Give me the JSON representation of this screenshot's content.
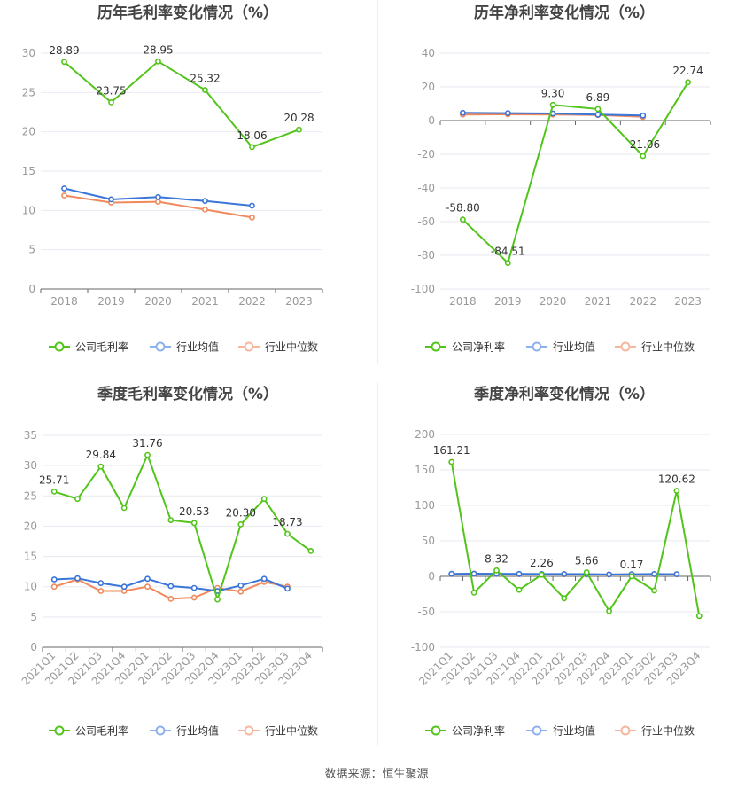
{
  "colors": {
    "company": "#52c41a",
    "industry_avg": "#3a75d8",
    "industry_median": "#f08a5d",
    "legend_avg": "#8fb0ee",
    "legend_median": "#f5b79d",
    "grid": "#e9e9f2",
    "axis_text": "#999999",
    "title": "#444444"
  },
  "legend_labels": {
    "gross_company": "公司毛利率",
    "net_company": "公司净利率",
    "avg": "行业均值",
    "median": "行业中位数"
  },
  "source": "数据来源：恒生聚源",
  "chart_data": [
    {
      "type": "line",
      "title": "历年毛利率变化情况（%）",
      "categories": [
        "2018",
        "2019",
        "2020",
        "2021",
        "2022",
        "2023"
      ],
      "ylim": [
        0,
        30
      ],
      "yticks": [
        0,
        5,
        10,
        15,
        20,
        25,
        30
      ],
      "series": [
        {
          "name": "公司毛利率",
          "values": [
            28.89,
            23.75,
            28.95,
            25.32,
            18.06,
            20.28
          ],
          "labels": [
            "28.89",
            "23.75",
            "28.95",
            "25.32",
            "18.06",
            "20.28"
          ]
        },
        {
          "name": "行业均值",
          "values": [
            12.8,
            11.4,
            11.7,
            11.2,
            10.6,
            null
          ]
        },
        {
          "name": "行业中位数",
          "values": [
            11.9,
            11.0,
            11.1,
            10.1,
            9.1,
            null
          ]
        }
      ]
    },
    {
      "type": "line",
      "title": "历年净利率变化情况（%）",
      "categories": [
        "2018",
        "2019",
        "2020",
        "2021",
        "2022",
        "2023"
      ],
      "ylim": [
        -100,
        40
      ],
      "yticks": [
        -100,
        -80,
        -60,
        -40,
        -20,
        0,
        20,
        40
      ],
      "series": [
        {
          "name": "公司净利率",
          "values": [
            -58.8,
            -84.51,
            9.3,
            6.89,
            -21.06,
            22.74
          ],
          "labels": [
            "-58.80",
            "-84.51",
            "9.30",
            "6.89",
            "-21.06",
            "22.74"
          ]
        },
        {
          "name": "行业均值",
          "values": [
            4.6,
            4.4,
            4.2,
            3.5,
            3.0,
            null
          ]
        },
        {
          "name": "行业中位数",
          "values": [
            3.6,
            3.7,
            3.6,
            3.3,
            2.2,
            null
          ]
        }
      ]
    },
    {
      "type": "line",
      "title": "季度毛利率变化情况（%）",
      "categories": [
        "2021Q1",
        "2021Q2",
        "2021Q3",
        "2021Q4",
        "2022Q1",
        "2022Q2",
        "2022Q3",
        "2022Q4",
        "2023Q1",
        "2023Q2",
        "2023Q3",
        "2023Q4"
      ],
      "ylim": [
        0,
        35
      ],
      "yticks": [
        0,
        5,
        10,
        15,
        20,
        25,
        30,
        35
      ],
      "series": [
        {
          "name": "公司毛利率",
          "values": [
            25.71,
            24.5,
            29.84,
            23.0,
            31.76,
            21.0,
            20.53,
            7.9,
            20.3,
            24.5,
            18.73,
            15.9
          ],
          "labels": [
            "25.71",
            "",
            "29.84",
            "",
            "31.76",
            "",
            "20.53",
            "",
            "20.30",
            "",
            "18.73",
            ""
          ]
        },
        {
          "name": "行业均值",
          "values": [
            11.2,
            11.4,
            10.6,
            10.0,
            11.3,
            10.1,
            9.8,
            9.3,
            10.2,
            11.3,
            9.7,
            null
          ]
        },
        {
          "name": "行业中位数",
          "values": [
            10.0,
            11.2,
            9.3,
            9.3,
            10.0,
            8.0,
            8.2,
            9.8,
            9.2,
            10.8,
            10.0,
            null
          ]
        }
      ]
    },
    {
      "type": "line",
      "title": "季度净利率变化情况（%）",
      "categories": [
        "2021Q1",
        "2021Q2",
        "2021Q3",
        "2021Q4",
        "2022Q1",
        "2022Q2",
        "2022Q3",
        "2022Q4",
        "2023Q1",
        "2023Q2",
        "2023Q3",
        "2023Q4"
      ],
      "ylim": [
        -100,
        200
      ],
      "yticks": [
        -100,
        -50,
        0,
        50,
        100,
        150,
        200
      ],
      "series": [
        {
          "name": "公司净利率",
          "values": [
            161.21,
            -23.0,
            8.32,
            -19.0,
            2.26,
            -31.0,
            5.66,
            -49.0,
            0.17,
            -20.0,
            120.62,
            -56.0
          ],
          "labels": [
            "161.21",
            "",
            "8.32",
            "",
            "2.26",
            "",
            "5.66",
            "",
            "0.17",
            "",
            "120.62",
            ""
          ]
        },
        {
          "name": "行业均值",
          "values": [
            3.5,
            3.8,
            3.6,
            3.4,
            3.3,
            3.2,
            3.1,
            2.6,
            3.0,
            3.2,
            3.0,
            null
          ]
        },
        {
          "name": "行业中位数",
          "values": [
            3.2,
            3.5,
            3.3,
            3.0,
            3.0,
            2.9,
            2.8,
            2.5,
            2.7,
            3.0,
            2.9,
            null
          ]
        }
      ]
    }
  ]
}
